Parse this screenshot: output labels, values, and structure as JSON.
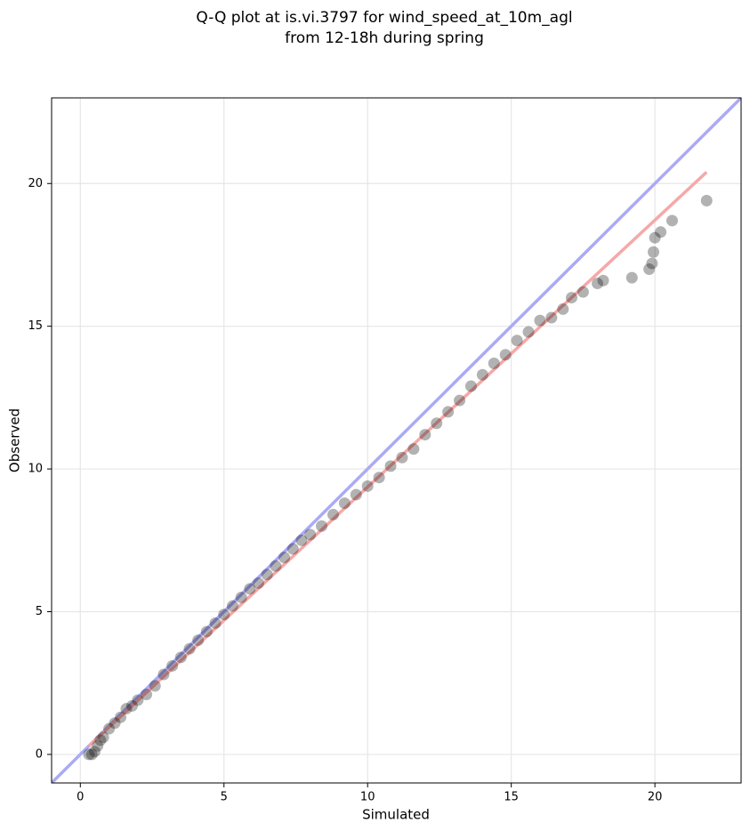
{
  "chart_data": {
    "type": "scatter",
    "title": [
      "Q-Q plot at is.vi.3797 for wind_speed_at_10m_agl",
      "from 12-18h during spring"
    ],
    "x_label": "Simulated",
    "y_label": "Observed",
    "xlim": [
      -1,
      23
    ],
    "ylim": [
      -1,
      23
    ],
    "xticks": [
      0,
      5,
      10,
      15,
      20
    ],
    "yticks": [
      0,
      5,
      10,
      15,
      20
    ],
    "grid": true,
    "points": {
      "color": "#000000",
      "alpha": 0.3,
      "x": [
        0.3,
        0.4,
        0.5,
        0.6,
        0.7,
        0.8,
        1.0,
        1.2,
        1.4,
        1.6,
        1.8,
        2.0,
        2.3,
        2.6,
        2.9,
        3.2,
        3.5,
        3.8,
        4.1,
        4.4,
        4.7,
        5.0,
        5.3,
        5.6,
        5.9,
        6.2,
        6.5,
        6.8,
        7.1,
        7.4,
        7.7,
        8.0,
        8.4,
        8.8,
        9.2,
        9.6,
        10.0,
        10.4,
        10.8,
        11.2,
        11.6,
        12.0,
        12.4,
        12.8,
        13.2,
        13.6,
        14.0,
        14.4,
        14.8,
        15.2,
        15.6,
        16.0,
        16.4,
        16.8,
        17.1,
        17.5,
        18.0,
        18.2,
        19.2,
        19.8,
        19.9,
        19.95,
        20.0,
        20.2,
        20.6,
        21.8
      ],
      "y": [
        0.0,
        0.0,
        0.1,
        0.3,
        0.5,
        0.6,
        0.9,
        1.1,
        1.3,
        1.6,
        1.7,
        1.9,
        2.1,
        2.4,
        2.8,
        3.1,
        3.4,
        3.7,
        4.0,
        4.3,
        4.6,
        4.9,
        5.2,
        5.5,
        5.8,
        6.0,
        6.3,
        6.6,
        6.9,
        7.2,
        7.5,
        7.7,
        8.0,
        8.4,
        8.8,
        9.1,
        9.4,
        9.7,
        10.1,
        10.4,
        10.7,
        11.2,
        11.6,
        12.0,
        12.4,
        12.9,
        13.3,
        13.7,
        14.0,
        14.5,
        14.8,
        15.2,
        15.3,
        15.6,
        16.0,
        16.2,
        16.5,
        16.6,
        16.7,
        17.0,
        17.2,
        17.6,
        18.1,
        18.3,
        18.7,
        19.4
      ]
    },
    "lines": [
      {
        "color": "#aaaaf6",
        "x": [
          -1,
          23
        ],
        "y": [
          -1,
          23
        ]
      },
      {
        "color": "#f6a8a8",
        "x": [
          0.3,
          21.8
        ],
        "y": [
          0.3,
          20.4
        ]
      }
    ]
  }
}
